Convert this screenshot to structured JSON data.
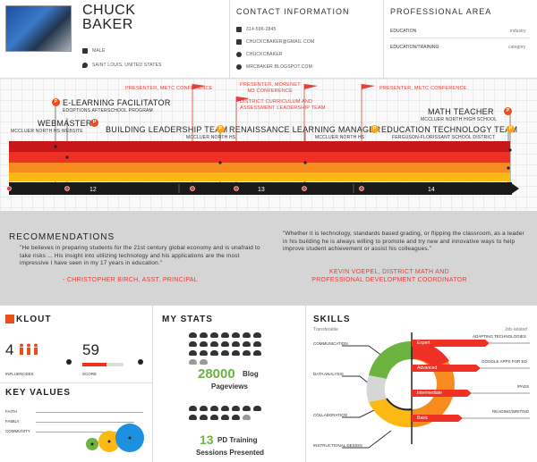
{
  "profile": {
    "first_name": "CHUCK",
    "last_name": "BAKER",
    "gender": "MALE",
    "location": "SAINT LOUIS, UNITED STATES"
  },
  "contact": {
    "title": "CONTACT INFORMATION",
    "phone": "314-596-2845",
    "email": "CHUCKCBAKER@GMAIL.COM",
    "skype": "CHUCKCBAKER",
    "blog": "MRCBAKER.BLOGSPOT.COM"
  },
  "professional": {
    "title": "PROFESSIONAL AREA",
    "rows": [
      {
        "label": "EDUCATION",
        "value": "industry"
      },
      {
        "label": "EDUCATION/TRAINING",
        "value": "category"
      }
    ]
  },
  "timeline": {
    "roles": [
      {
        "title": "WEBMASTER",
        "org": "MCCLUER NORTH HS WEBSITE",
        "pin": "P"
      },
      {
        "title": "E-LEARNING FACILITATOR",
        "org": "EDOPTIONS AFTERSCHOOL PROGRAM",
        "pin": "P"
      },
      {
        "title": "BUILDING LEADERSHIP TEAM",
        "org": "MCCLUER NORTH HS",
        "pin": "P"
      },
      {
        "title": "RENAISSANCE LEARNING MANAGER",
        "org": "MCCLUER NORTH HS",
        "pin": "P"
      },
      {
        "title": "EDUCATION TECHNOLOGY TEAM",
        "org": "FERGUSON-FLORISSANT SCHOOL DISTRICT",
        "pin": "P"
      },
      {
        "title": "MATH TEACHER",
        "org": "MCCLUER NORTH HIGH SCHOOL",
        "pin": "P"
      }
    ],
    "flags": [
      "PRESENTER, METC CONFERENCE",
      "PRESENTER, MORENET\nM3 CONFERENCE",
      "DISTRICT CURRICULUM AND\nASSESSMENT LEADERSHIP TEAM",
      "PRESENTER, METC CONFERENCE"
    ],
    "years": [
      "12",
      "13",
      "14"
    ],
    "colors": {
      "band1": "#c7161a",
      "band2": "#ee3124",
      "band3": "#f68b1f",
      "band4": "#fdb913",
      "pin_red": "#e94e1b",
      "pin_orange": "#f5a623",
      "axis": "#1a1a1a"
    }
  },
  "recommendations": {
    "title": "RECOMMENDATIONS",
    "items": [
      {
        "quote": "\"He believes in preparing students for the 21st century global economy and is unafraid to take risks ... His insight into utilizing technology and his applications are the most impressive I have seen in my 17 years in education.\"",
        "author": "- CHRISTOPHER BIRCH, ASST. PRINCIPAL"
      },
      {
        "quote": "\"Whether it is technology, standards based grading, or flipping the classroom, as a leader in his building he is always willing to promote and try new and innovative ways to help improve student achievement or assist his colleagues.\"",
        "author": "KEVIN VOEPEL, DISTRICT MATH AND PROFESSIONAL DEVELOPMENT COORDINATOR"
      }
    ]
  },
  "klout": {
    "logo": "KLOUT",
    "influencees": "4",
    "influencees_label": "INFLUENCEES",
    "score": "59",
    "score_label": "SCORE",
    "score_fraction": 0.59
  },
  "key_values": {
    "title": "KEY VALUES",
    "items": [
      "FAITH",
      "FAMILY",
      "COMMUNITY"
    ]
  },
  "stats": {
    "title": "MY STATS",
    "blog_views": "28000",
    "blog_label": "Blog",
    "blog_label2": "Pageviews",
    "pd_count": "13",
    "pd_label": "PD Training",
    "pd_label2": "Sessions Presented"
  },
  "skills": {
    "title": "SKILLS",
    "transferable": "Transferable",
    "job_related": "Job-related",
    "left": [
      "COMMUNICATION",
      "DATA ANALYSIS",
      "COLLABORATION",
      "INSTRUCTIONAL DESIGN"
    ],
    "levels": [
      "Expert",
      "Advanced",
      "Intermediate",
      "Basic"
    ],
    "right": [
      "ADAPTING TECHNOLOGIES",
      "GOOGLE APPS FOR ED",
      "IPADS",
      "READING/WRITING"
    ]
  }
}
